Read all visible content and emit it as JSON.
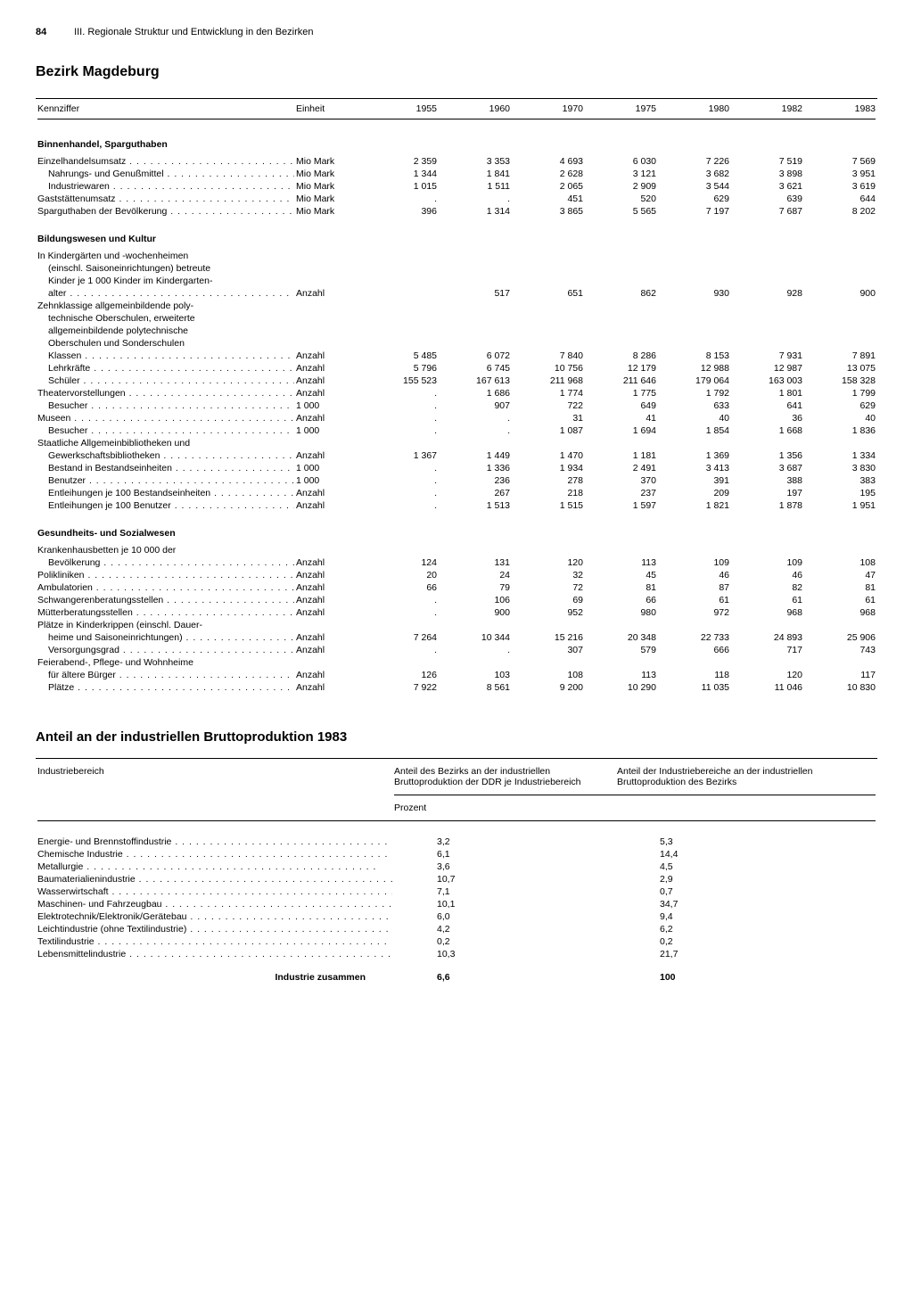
{
  "page": {
    "num": "84",
    "chapter": "III. Regionale Struktur und Entwicklung in den Bezirken"
  },
  "title": "Bezirk Magdeburg",
  "t1": {
    "head": {
      "k": "Kennziffer",
      "u": "Einheit",
      "years": [
        "1955",
        "1960",
        "1970",
        "1975",
        "1980",
        "1982",
        "1983"
      ]
    },
    "sections": [
      {
        "title": "Binnenhandel, Sparguthaben",
        "rows": [
          {
            "l": "Einzelhandelsumsatz",
            "u": "Mio Mark",
            "v": [
              "2 359",
              "3 353",
              "4 693",
              "6 030",
              "7 226",
              "7 519",
              "7 569"
            ],
            "i": 0,
            "d": 1
          },
          {
            "l": "Nahrungs- und Genußmittel",
            "u": "Mio Mark",
            "v": [
              "1 344",
              "1 841",
              "2 628",
              "3 121",
              "3 682",
              "3 898",
              "3 951"
            ],
            "i": 1,
            "d": 1
          },
          {
            "l": "Industriewaren",
            "u": "Mio Mark",
            "v": [
              "1 015",
              "1 511",
              "2 065",
              "2 909",
              "3 544",
              "3 621",
              "3 619"
            ],
            "i": 1,
            "d": 1
          },
          {
            "l": "Gaststättenumsatz",
            "u": "Mio Mark",
            "v": [
              ".",
              ".",
              "451",
              "520",
              "629",
              "639",
              "644"
            ],
            "i": 0,
            "d": 1
          },
          {
            "l": "Sparguthaben der Bevölkerung",
            "u": "Mio Mark",
            "v": [
              "396",
              "1 314",
              "3 865",
              "5 565",
              "7 197",
              "7 687",
              "8 202"
            ],
            "i": 0,
            "d": 1
          }
        ]
      },
      {
        "title": "Bildungswesen und Kultur",
        "rows": [
          {
            "l": "In Kindergärten und -wochenheimen",
            "u": "",
            "v": [
              "",
              "",
              "",
              "",
              "",
              "",
              ""
            ],
            "i": 0,
            "d": 0
          },
          {
            "l": "(einschl. Saisoneinrichtungen) betreute",
            "u": "",
            "v": [
              "",
              "",
              "",
              "",
              "",
              "",
              ""
            ],
            "i": 1,
            "d": 0
          },
          {
            "l": "Kinder je 1 000 Kinder im Kindergarten-",
            "u": "",
            "v": [
              "",
              "",
              "",
              "",
              "",
              "",
              ""
            ],
            "i": 1,
            "d": 0
          },
          {
            "l": "alter",
            "u": "Anzahl",
            "v": [
              "",
              "517",
              "651",
              "862",
              "930",
              "928",
              "900"
            ],
            "i": 1,
            "d": 1
          },
          {
            "l": "Zehnklassige allgemeinbildende poly-",
            "u": "",
            "v": [
              "",
              "",
              "",
              "",
              "",
              "",
              ""
            ],
            "i": 0,
            "d": 0
          },
          {
            "l": "technische Oberschulen, erweiterte",
            "u": "",
            "v": [
              "",
              "",
              "",
              "",
              "",
              "",
              ""
            ],
            "i": 1,
            "d": 0
          },
          {
            "l": "allgemeinbildende polytechnische",
            "u": "",
            "v": [
              "",
              "",
              "",
              "",
              "",
              "",
              ""
            ],
            "i": 1,
            "d": 0
          },
          {
            "l": "Oberschulen und Sonderschulen",
            "u": "",
            "v": [
              "",
              "",
              "",
              "",
              "",
              "",
              ""
            ],
            "i": 1,
            "d": 0
          },
          {
            "l": "Klassen",
            "u": "Anzahl",
            "v": [
              "5 485",
              "6 072",
              "7 840",
              "8 286",
              "8 153",
              "7 931",
              "7 891"
            ],
            "i": 1,
            "d": 1
          },
          {
            "l": "Lehrkräfte",
            "u": "Anzahl",
            "v": [
              "5 796",
              "6 745",
              "10 756",
              "12 179",
              "12 988",
              "12 987",
              "13 075"
            ],
            "i": 1,
            "d": 1
          },
          {
            "l": "Schüler",
            "u": "Anzahl",
            "v": [
              "155 523",
              "167 613",
              "211 968",
              "211 646",
              "179 064",
              "163 003",
              "158 328"
            ],
            "i": 1,
            "d": 1
          },
          {
            "l": "Theatervorstellungen",
            "u": "Anzahl",
            "v": [
              ".",
              "1 686",
              "1 774",
              "1 775",
              "1 792",
              "1 801",
              "1 799"
            ],
            "i": 0,
            "d": 1
          },
          {
            "l": "Besucher",
            "u": "1 000",
            "v": [
              ".",
              "907",
              "722",
              "649",
              "633",
              "641",
              "629"
            ],
            "i": 1,
            "d": 1
          },
          {
            "l": "Museen",
            "u": "Anzahl",
            "v": [
              ".",
              ".",
              "31",
              "41",
              "40",
              "36",
              "40"
            ],
            "i": 0,
            "d": 1
          },
          {
            "l": "Besucher",
            "u": "1 000",
            "v": [
              ".",
              ".",
              "1 087",
              "1 694",
              "1 854",
              "1 668",
              "1 836"
            ],
            "i": 1,
            "d": 1
          },
          {
            "l": "Staatliche Allgemeinbibliotheken und",
            "u": "",
            "v": [
              "",
              "",
              "",
              "",
              "",
              "",
              ""
            ],
            "i": 0,
            "d": 0
          },
          {
            "l": "Gewerkschaftsbibliotheken",
            "u": "Anzahl",
            "v": [
              "1 367",
              "1 449",
              "1 470",
              "1 181",
              "1 369",
              "1 356",
              "1 334"
            ],
            "i": 1,
            "d": 1
          },
          {
            "l": "Bestand in Bestandseinheiten",
            "u": "1 000",
            "v": [
              ".",
              "1 336",
              "1 934",
              "2 491",
              "3 413",
              "3 687",
              "3 830"
            ],
            "i": 1,
            "d": 1
          },
          {
            "l": "Benutzer",
            "u": "1 000",
            "v": [
              ".",
              "236",
              "278",
              "370",
              "391",
              "388",
              "383"
            ],
            "i": 1,
            "d": 1
          },
          {
            "l": "Entleihungen je 100 Bestandseinheiten",
            "u": "Anzahl",
            "v": [
              ".",
              "267",
              "218",
              "237",
              "209",
              "197",
              "195"
            ],
            "i": 1,
            "d": 1
          },
          {
            "l": "Entleihungen je 100 Benutzer",
            "u": "Anzahl",
            "v": [
              ".",
              "1 513",
              "1 515",
              "1 597",
              "1 821",
              "1 878",
              "1 951"
            ],
            "i": 1,
            "d": 1
          }
        ]
      },
      {
        "title": "Gesundheits- und Sozialwesen",
        "rows": [
          {
            "l": "Krankenhausbetten je 10 000 der",
            "u": "",
            "v": [
              "",
              "",
              "",
              "",
              "",
              "",
              ""
            ],
            "i": 0,
            "d": 0
          },
          {
            "l": "Bevölkerung",
            "u": "Anzahl",
            "v": [
              "124",
              "131",
              "120",
              "113",
              "109",
              "109",
              "108"
            ],
            "i": 1,
            "d": 1
          },
          {
            "l": "Polikliniken",
            "u": "Anzahl",
            "v": [
              "20",
              "24",
              "32",
              "45",
              "46",
              "46",
              "47"
            ],
            "i": 0,
            "d": 1
          },
          {
            "l": "Ambulatorien",
            "u": "Anzahl",
            "v": [
              "66",
              "79",
              "72",
              "81",
              "87",
              "82",
              "81"
            ],
            "i": 0,
            "d": 1
          },
          {
            "l": "Schwangerenberatungsstellen",
            "u": "Anzahl",
            "v": [
              ".",
              "106",
              "69",
              "66",
              "61",
              "61",
              "61"
            ],
            "i": 0,
            "d": 1
          },
          {
            "l": "Mütterberatungsstellen",
            "u": "Anzahl",
            "v": [
              ".",
              "900",
              "952",
              "980",
              "972",
              "968",
              "968"
            ],
            "i": 0,
            "d": 1
          },
          {
            "l": "Plätze in Kinderkrippen (einschl. Dauer-",
            "u": "",
            "v": [
              "",
              "",
              "",
              "",
              "",
              "",
              ""
            ],
            "i": 0,
            "d": 0
          },
          {
            "l": "heime und Saisoneinrichtungen)",
            "u": "Anzahl",
            "v": [
              "7 264",
              "10 344",
              "15 216",
              "20 348",
              "22 733",
              "24 893",
              "25 906"
            ],
            "i": 1,
            "d": 1
          },
          {
            "l": "Versorgungsgrad",
            "u": "Anzahl",
            "v": [
              ".",
              ".",
              "307",
              "579",
              "666",
              "717",
              "743"
            ],
            "i": 1,
            "d": 1
          },
          {
            "l": "Feierabend-, Pflege- und Wohnheime",
            "u": "",
            "v": [
              "",
              "",
              "",
              "",
              "",
              "",
              ""
            ],
            "i": 0,
            "d": 0
          },
          {
            "l": "für ältere Bürger",
            "u": "Anzahl",
            "v": [
              "126",
              "103",
              "108",
              "113",
              "118",
              "120",
              "117"
            ],
            "i": 1,
            "d": 1
          },
          {
            "l": "Plätze",
            "u": "Anzahl",
            "v": [
              "7 922",
              "8 561",
              "9 200",
              "10 290",
              "11 035",
              "11 046",
              "10 830"
            ],
            "i": 1,
            "d": 1
          }
        ]
      }
    ]
  },
  "title2": "Anteil an der industriellen Bruttoproduktion 1983",
  "t2": {
    "head": {
      "c1": "Industriebereich",
      "c2": "Anteil des Bezirks an der industriellen Bruttoproduktion der DDR je Industriebereich",
      "c3": "Anteil der Industriebereiche an der industriellen Bruttoproduktion des Bezirks",
      "sub": "Prozent"
    },
    "rows": [
      {
        "l": "Energie- und Brennstoffindustrie",
        "a": "3,2",
        "b": "5,3"
      },
      {
        "l": "Chemische Industrie",
        "a": "6,1",
        "b": "14,4"
      },
      {
        "l": "Metallurgie",
        "a": "3,6",
        "b": "4,5"
      },
      {
        "l": "Baumaterialienindustrie",
        "a": "10,7",
        "b": "2,9"
      },
      {
        "l": "Wasserwirtschaft",
        "a": "7,1",
        "b": "0,7"
      },
      {
        "l": "Maschinen- und Fahrzeugbau",
        "a": "10,1",
        "b": "34,7"
      },
      {
        "l": "Elektrotechnik/Elektronik/Gerätebau",
        "a": "6,0",
        "b": "9,4"
      },
      {
        "l": "Leichtindustrie (ohne Textilindustrie)",
        "a": "4,2",
        "b": "6,2"
      },
      {
        "l": "Textilindustrie",
        "a": "0,2",
        "b": "0,2"
      },
      {
        "l": "Lebensmittelindustrie",
        "a": "10,3",
        "b": "21,7"
      }
    ],
    "total": {
      "l": "Industrie zusammen",
      "a": "6,6",
      "b": "100"
    }
  }
}
